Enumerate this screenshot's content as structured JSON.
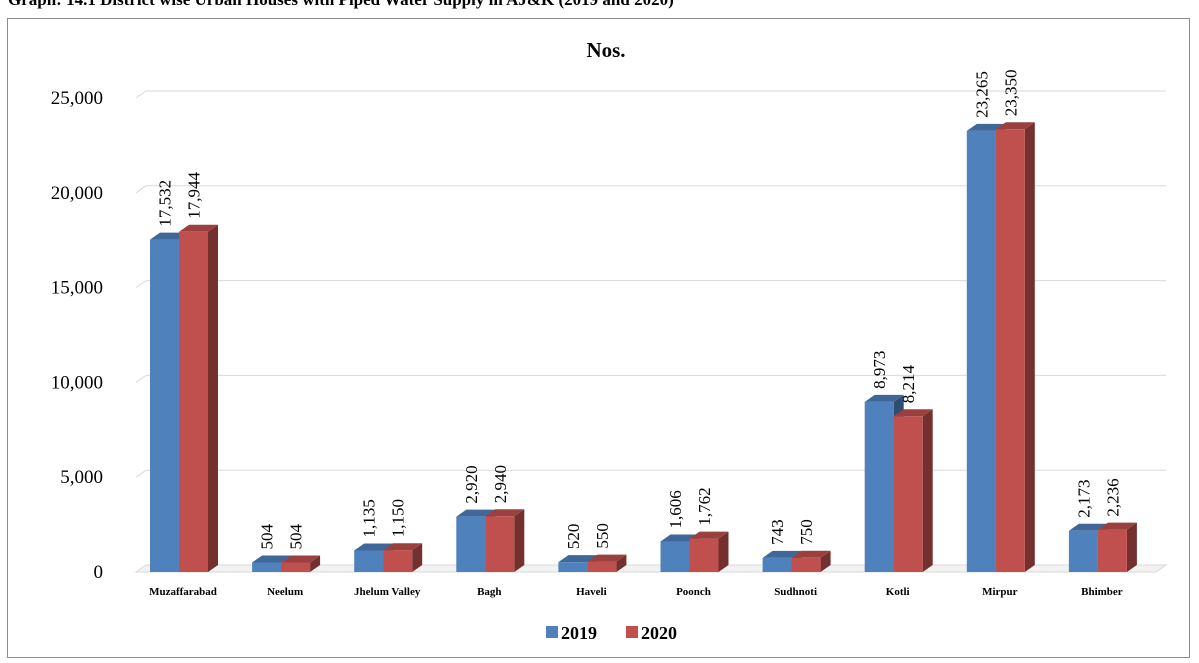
{
  "caption": "Graph: 14.1 District wise Urban Houses with Piped Water Supply in AJ&K (2019 and 2020)",
  "chart_data": {
    "type": "bar",
    "title": "Nos.",
    "xlabel": "",
    "ylabel": "",
    "ylim": [
      0,
      25000
    ],
    "y_ticks": [
      "0",
      "5,000",
      "10,000",
      "15,000",
      "20,000",
      "25,000"
    ],
    "y_tick_values": [
      0,
      5000,
      10000,
      15000,
      20000,
      25000
    ],
    "grid": true,
    "legend_position": "bottom",
    "categories": [
      "Muzaffarabad",
      "Neelum",
      "Jhelum Valley",
      "Bagh",
      "Haveli",
      "Poonch",
      "Sudhnoti",
      "Kotli",
      "Mirpur",
      "Bhimber"
    ],
    "series": [
      {
        "name": "2019",
        "color": "#4f81bd",
        "values": [
          17532,
          504,
          1135,
          2920,
          520,
          1606,
          743,
          8973,
          23265,
          2173
        ],
        "labels": [
          "17,532",
          "504",
          "1,135",
          "2,920",
          "520",
          "1,606",
          "743",
          "8,973",
          "23,265",
          "2,173"
        ]
      },
      {
        "name": "2020",
        "color": "#c0504d",
        "values": [
          17944,
          504,
          1150,
          2940,
          550,
          1762,
          750,
          8214,
          23350,
          2236
        ],
        "labels": [
          "17,944",
          "504",
          "1,150",
          "2,940",
          "550",
          "1,762",
          "750",
          "8,214",
          "23,350",
          "2,236"
        ]
      }
    ]
  }
}
